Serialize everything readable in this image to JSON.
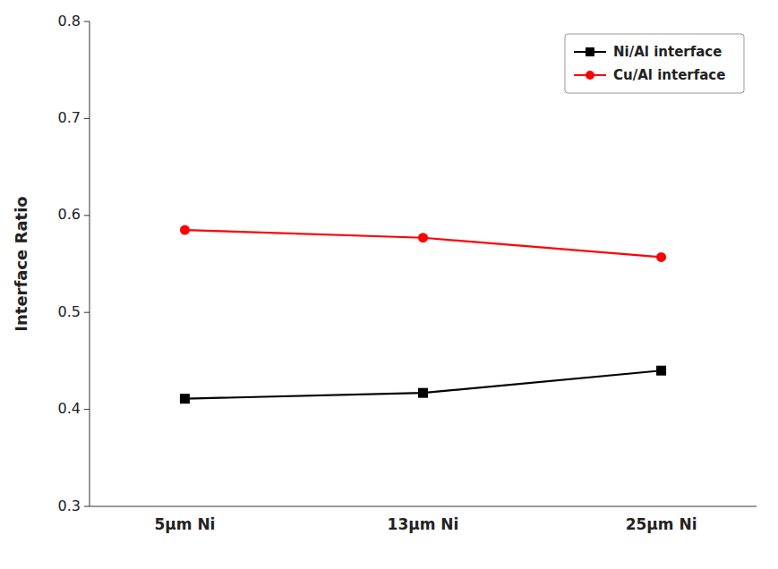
{
  "chart_data": {
    "type": "line",
    "categories": [
      "5μm Ni",
      "13μm Ni",
      "25μm Ni"
    ],
    "series": [
      {
        "name": "Ni/Al interface",
        "color": "#000000",
        "marker": "square",
        "values": [
          0.411,
          0.417,
          0.44
        ]
      },
      {
        "name": "Cu/Al interface",
        "color": "#ff0000",
        "marker": "circle",
        "values": [
          0.585,
          0.577,
          0.557
        ]
      }
    ],
    "y_label": "Interface Ratio",
    "ylim": [
      0.3,
      0.8
    ],
    "yticks": [
      0.3,
      0.4,
      0.5,
      0.6,
      0.7,
      0.8
    ],
    "grid": false,
    "legend": "upper right"
  }
}
